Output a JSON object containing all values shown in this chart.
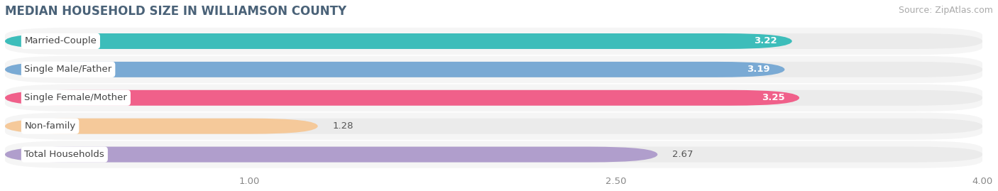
{
  "title": "MEDIAN HOUSEHOLD SIZE IN WILLIAMSON COUNTY",
  "source": "Source: ZipAtlas.com",
  "categories": [
    "Married-Couple",
    "Single Male/Father",
    "Single Female/Mother",
    "Non-family",
    "Total Households"
  ],
  "values": [
    3.22,
    3.19,
    3.25,
    1.28,
    2.67
  ],
  "bar_colors": [
    "#3dbdba",
    "#7aaad4",
    "#f0608a",
    "#f5c99a",
    "#b09ecc"
  ],
  "value_label_colors": [
    "white",
    "white",
    "white",
    "black",
    "black"
  ],
  "xlim": [
    0,
    4.0
  ],
  "xticks": [
    1.0,
    2.5,
    4.0
  ],
  "background_color": "#ffffff",
  "bar_background_color": "#ebebeb",
  "row_background_color": "#f5f5f5",
  "title_fontsize": 12,
  "source_fontsize": 9,
  "label_fontsize": 9.5,
  "value_fontsize": 9.5
}
